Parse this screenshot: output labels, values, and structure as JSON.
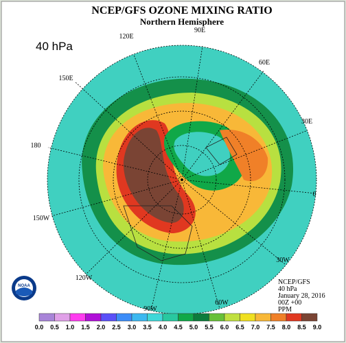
{
  "header": {
    "title": "NCEP/GFS OZONE MIXING RATIO",
    "subtitle": "Northern Hemisphere",
    "level": "40 hPa"
  },
  "longitude_labels": [
    "90E",
    "60E",
    "30E",
    "0",
    "30W",
    "60W",
    "90W",
    "120W",
    "150W",
    "180",
    "150E",
    "120E"
  ],
  "info": [
    "NCEP/GFS",
    "40 hPa",
    "January 28, 2016",
    "00Z +00",
    "PPM"
  ],
  "logo": "NOAA",
  "colorbar": {
    "labels": [
      "0.0",
      "0.5",
      "1.0",
      "1.5",
      "2.0",
      "2.5",
      "3.0",
      "3.5",
      "4.0",
      "4.5",
      "5.0",
      "5.5",
      "6.0",
      "6.5",
      "7.0",
      "7.5",
      "8.0",
      "8.5",
      "9.0"
    ],
    "colors": [
      "#a884d8",
      "#e0a0e8",
      "#ff3cf0",
      "#b010d8",
      "#5a50f8",
      "#3c8cf8",
      "#3cb8f0",
      "#40d8d8",
      "#28c8a0",
      "#10a848",
      "#0c7c3c",
      "#68c038",
      "#c0e040",
      "#f0e020",
      "#f8b838",
      "#f08028",
      "#e03820",
      "#7a4434"
    ]
  }
}
